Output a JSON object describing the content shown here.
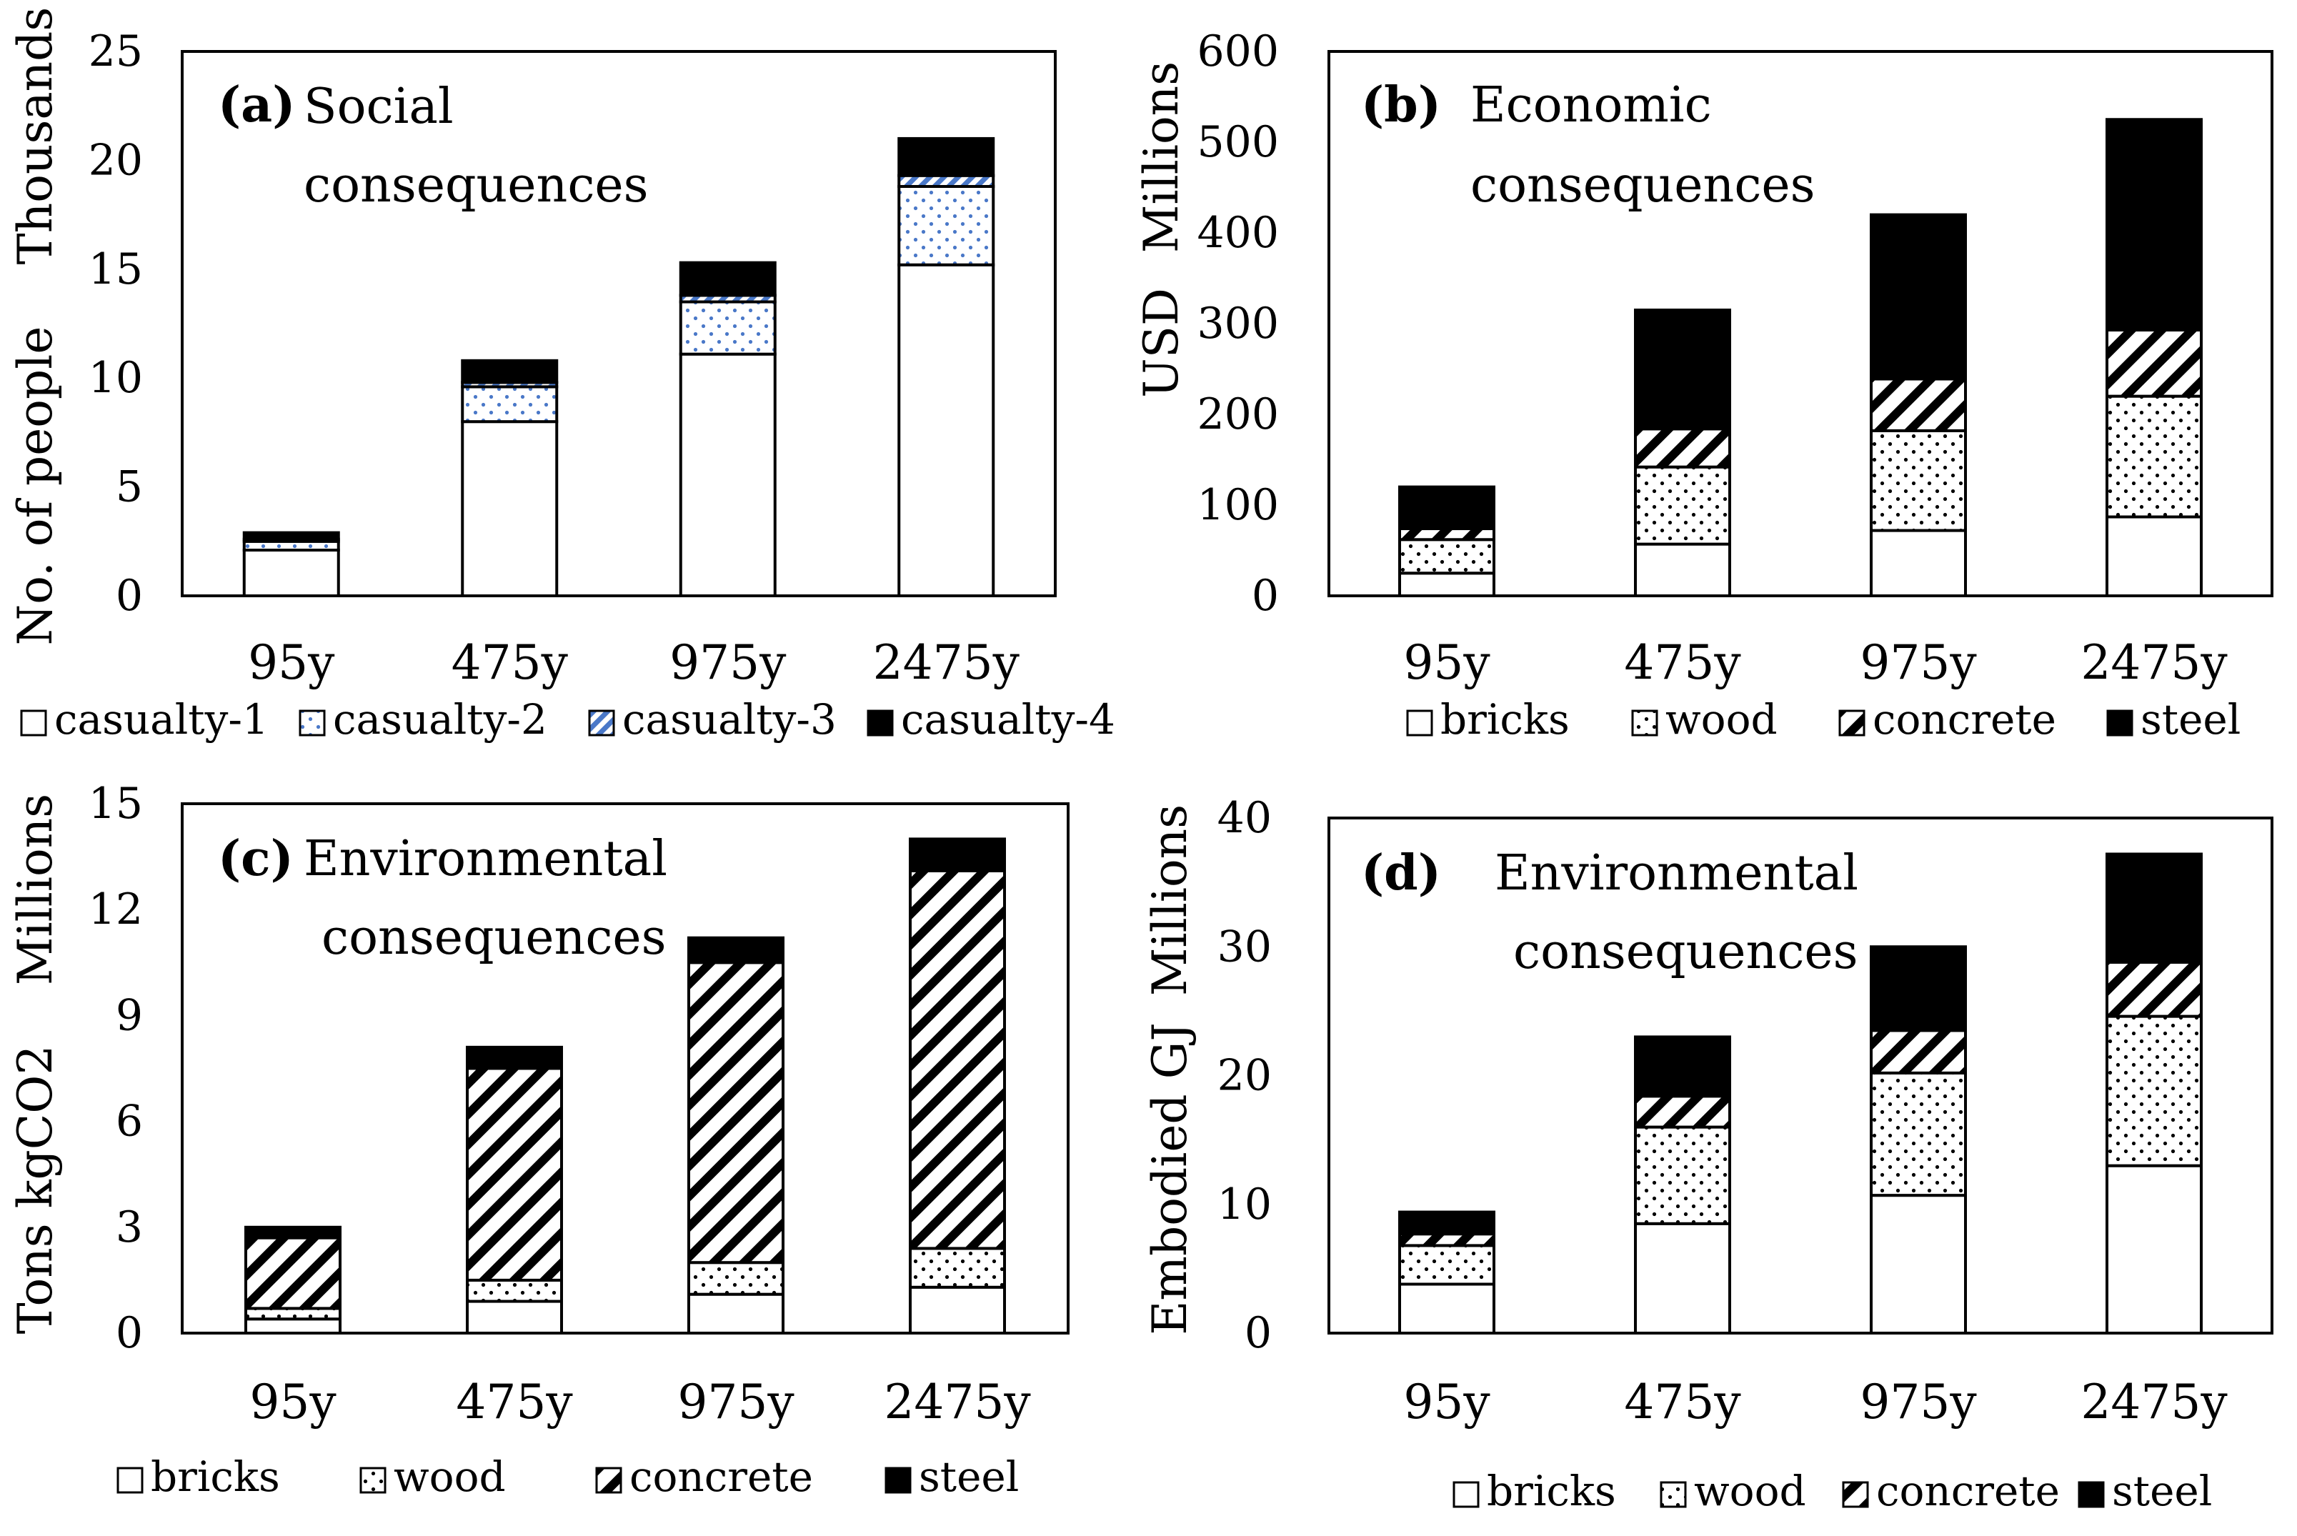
{
  "patterns": {
    "blue_dots_color": "#4a78c8",
    "hatch_color": "#000000",
    "solid_color": "#000000",
    "fill_white": "#ffffff"
  },
  "chart_data": [
    {
      "type": "bar",
      "panel": "a",
      "stacked": true,
      "label": "(a)",
      "title": "Social",
      "title2": "consequences",
      "unit": "Thousands",
      "ylabel": "No. of people",
      "ylim": [
        0,
        25
      ],
      "yticks": [
        0,
        5,
        10,
        15,
        20,
        25
      ],
      "categories": [
        "95y",
        "475y",
        "975y",
        "2475y"
      ],
      "series": [
        {
          "name": "casualty-1",
          "pattern": "white",
          "values": [
            2.1,
            8.0,
            11.1,
            15.2
          ]
        },
        {
          "name": "casualty-2",
          "pattern": "bluedots",
          "values": [
            0.4,
            1.6,
            2.4,
            3.6
          ]
        },
        {
          "name": "casualty-3",
          "pattern": "bluehatch",
          "values": [
            0.1,
            0.2,
            0.3,
            0.5
          ]
        },
        {
          "name": "casualty-4",
          "pattern": "black",
          "values": [
            0.3,
            1.0,
            1.5,
            1.7
          ]
        }
      ]
    },
    {
      "type": "bar",
      "panel": "b",
      "stacked": true,
      "label": "(b)",
      "title": "Economic",
      "title2": "consequences",
      "unit": "Millions",
      "ylabel": "USD",
      "ylim": [
        0,
        600
      ],
      "yticks": [
        0,
        100,
        200,
        300,
        400,
        500,
        600
      ],
      "categories": [
        "95y",
        "475y",
        "975y",
        "2475y"
      ],
      "series": [
        {
          "name": "bricks",
          "pattern": "white",
          "values": [
            25,
            57,
            72,
            87
          ]
        },
        {
          "name": "wood",
          "pattern": "dots",
          "values": [
            37,
            85,
            110,
            133
          ]
        },
        {
          "name": "concrete",
          "pattern": "hatch",
          "values": [
            12,
            42,
            57,
            73
          ]
        },
        {
          "name": "steel",
          "pattern": "black",
          "values": [
            46,
            131,
            181,
            232
          ]
        }
      ]
    },
    {
      "type": "bar",
      "panel": "c",
      "stacked": true,
      "label": "(c)",
      "title": "Environmental",
      "title2": "consequences",
      "unit": "Millions",
      "ylabel": "Tons kgCO2",
      "ylim": [
        0,
        15
      ],
      "yticks": [
        0,
        3,
        6,
        9,
        12,
        15
      ],
      "categories": [
        "95y",
        "475y",
        "975y",
        "2475y"
      ],
      "series": [
        {
          "name": "bricks",
          "pattern": "white",
          "values": [
            0.4,
            0.9,
            1.1,
            1.3
          ]
        },
        {
          "name": "wood",
          "pattern": "dots",
          "values": [
            0.3,
            0.6,
            0.9,
            1.1
          ]
        },
        {
          "name": "concrete",
          "pattern": "hatch",
          "values": [
            2.0,
            6.0,
            8.5,
            10.7
          ]
        },
        {
          "name": "steel",
          "pattern": "black",
          "values": [
            0.3,
            0.6,
            0.7,
            0.9
          ]
        }
      ]
    },
    {
      "type": "bar",
      "panel": "d",
      "stacked": true,
      "label": "(d)",
      "title": "Environmental",
      "title2": "consequences",
      "unit": "Millions",
      "ylabel": "Embodied GJ",
      "ylim": [
        0,
        40
      ],
      "yticks": [
        0,
        10,
        20,
        30,
        40
      ],
      "categories": [
        "95y",
        "475y",
        "975y",
        "2475y"
      ],
      "series": [
        {
          "name": "bricks",
          "pattern": "white",
          "values": [
            3.8,
            8.5,
            10.7,
            13.0
          ]
        },
        {
          "name": "wood",
          "pattern": "dots",
          "values": [
            3.0,
            7.5,
            9.5,
            11.6
          ]
        },
        {
          "name": "concrete",
          "pattern": "hatch",
          "values": [
            0.9,
            2.4,
            3.3,
            4.2
          ]
        },
        {
          "name": "steel",
          "pattern": "black",
          "values": [
            1.7,
            4.6,
            6.5,
            8.4
          ]
        }
      ]
    }
  ]
}
